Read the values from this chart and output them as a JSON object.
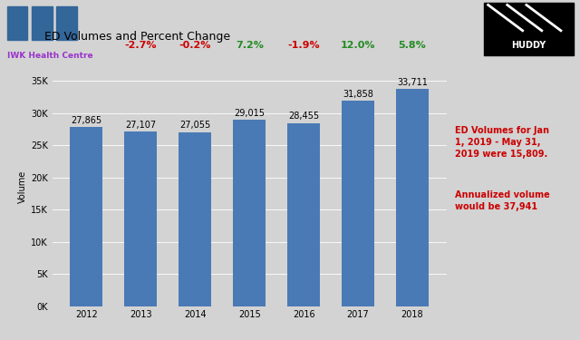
{
  "title": "ED Volumes and Percent Change",
  "years": [
    "2012",
    "2013",
    "2014",
    "2015",
    "2016",
    "2017",
    "2018"
  ],
  "values": [
    27865,
    27107,
    27055,
    29015,
    28455,
    31858,
    33711
  ],
  "bar_color": "#4a7ab5",
  "pct_changes": [
    null,
    "-2.7%",
    "-0.2%",
    "7.2%",
    "-1.9%",
    "12.0%",
    "5.8%"
  ],
  "pct_colors": [
    null,
    "#cc0000",
    "#cc0000",
    "#228B22",
    "#cc0000",
    "#228B22",
    "#228B22"
  ],
  "bar_labels": [
    "27,865",
    "27,107",
    "27,055",
    "29,015",
    "28,455",
    "31,858",
    "33,711"
  ],
  "ylabel": "Volume",
  "ylim": [
    0,
    37000
  ],
  "yticks": [
    0,
    5000,
    10000,
    15000,
    20000,
    25000,
    30000,
    35000
  ],
  "ytick_labels": [
    "0K",
    "5K",
    "10K",
    "15K",
    "20K",
    "25K",
    "30K",
    "35K"
  ],
  "background_color": "#d3d3d3",
  "annotation_text1": "ED Volumes for Jan\n1, 2019 - May 31,\n2019 were 15,809.",
  "annotation_text2": "Annualized volume\nwould be 37,941",
  "annotation_color": "#cc0000",
  "title_fontsize": 9,
  "bar_label_fontsize": 7,
  "pct_fontsize": 8,
  "axis_label_fontsize": 7,
  "tick_fontsize": 7,
  "iwk_color_top": "#336699",
  "iwk_text": "IWK Health Centre",
  "iwk_text_color": "#9933cc",
  "header_bg": "#d3d3d3"
}
